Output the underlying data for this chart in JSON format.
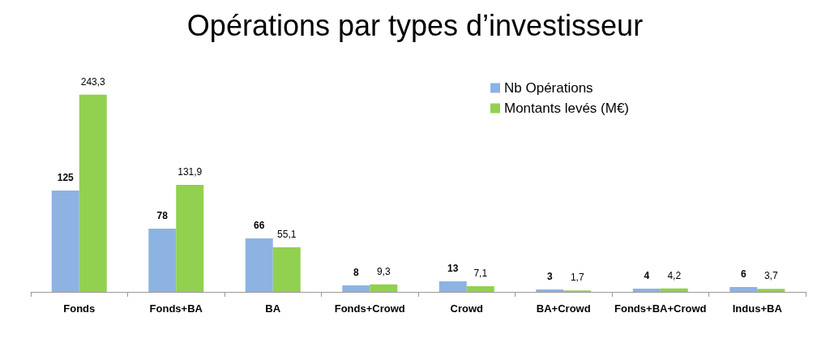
{
  "chart_data": {
    "type": "bar",
    "title": "Opérations par types d’investisseur",
    "categories": [
      "Fonds",
      "Fonds+BA",
      "BA",
      "Fonds+Crowd",
      "Crowd",
      "BA+Crowd",
      "Fonds+BA+Crowd",
      "Indus+BA"
    ],
    "series": [
      {
        "name": "Nb Opérations",
        "color": "#8db3e2",
        "values": [
          125,
          78,
          66,
          8,
          13,
          3,
          4,
          6
        ],
        "value_labels": [
          "125",
          "78",
          "66",
          "8",
          "13",
          "3",
          "4",
          "6"
        ]
      },
      {
        "name": "Montants levés (M€)",
        "color": "#92d050",
        "values": [
          243.3,
          131.9,
          55.1,
          9.3,
          7.1,
          1.7,
          4.2,
          3.7
        ],
        "value_labels": [
          "243,3",
          "131,9",
          "55,1",
          "9,3",
          "7,1",
          "1,7",
          "4,2",
          "3,7"
        ]
      }
    ],
    "legend": "top right"
  }
}
